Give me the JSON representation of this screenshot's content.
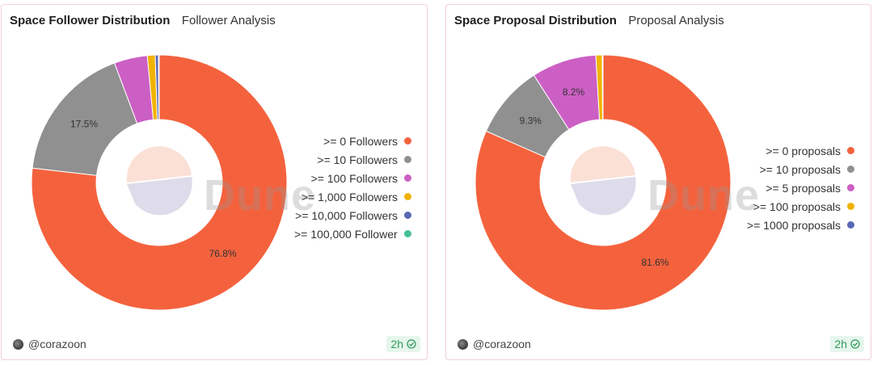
{
  "cards": [
    {
      "title": "Space Follower Distribution",
      "subtitle": "Follower Analysis",
      "author": "@corazoon",
      "refresh": "2h",
      "watermark": "Dune",
      "icons": {
        "avatar": "avatar-icon",
        "refresh": "check-circle-icon"
      }
    },
    {
      "title": "Space Proposal Distribution",
      "subtitle": "Proposal Analysis",
      "author": "@corazoon",
      "refresh": "2h",
      "watermark": "Dune",
      "icons": {
        "avatar": "avatar-icon",
        "refresh": "check-circle-icon"
      }
    }
  ],
  "chart_data": [
    {
      "type": "pie",
      "variant": "donut",
      "categories": [
        ">= 0 Followers",
        ">= 10 Followers",
        ">= 100 Followers",
        ">= 1,000 Followers",
        ">= 10,000 Followers",
        ">= 100,000 Followers"
      ],
      "values": [
        76.8,
        17.5,
        4.2,
        1.0,
        0.4,
        0.1
      ],
      "data_labels": [
        "76.8%",
        "17.5%",
        "",
        "",
        "",
        ""
      ],
      "colors": [
        "#f4623d",
        "#909090",
        "#cc5fc4",
        "#f1b300",
        "#5868b5",
        "#45bf97"
      ],
      "legend_position": "right"
    },
    {
      "type": "pie",
      "variant": "donut",
      "categories": [
        ">= 0 proposals",
        ">= 10 proposals",
        ">= 5 proposals",
        ">= 100 proposals",
        ">= 1000 proposals"
      ],
      "values": [
        81.6,
        9.3,
        8.2,
        0.8,
        0.1
      ],
      "data_labels": [
        "81.6%",
        "9.3%",
        "8.2%",
        "",
        ""
      ],
      "colors": [
        "#f4623d",
        "#909090",
        "#cc5fc4",
        "#f1b300",
        "#5868b5"
      ],
      "legend_position": "right"
    }
  ]
}
